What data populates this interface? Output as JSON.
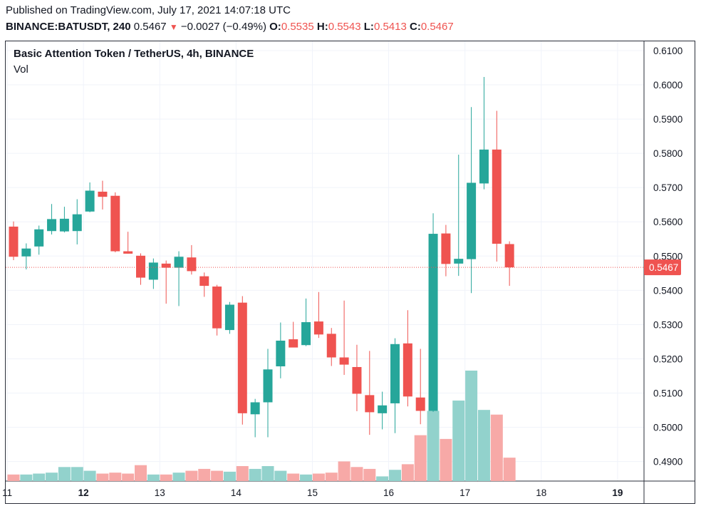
{
  "header": {
    "published": "Published on TradingView.com, July 17, 2021 14:07:18 UTC",
    "symbol": "BINANCE:BATUSDT, 240",
    "last": "0.5467",
    "change": "−0.0027 (−0.49%)",
    "open_label": "O:",
    "open": "0.5535",
    "high_label": "H:",
    "high": "0.5543",
    "low_label": "L:",
    "low": "0.5413",
    "close_label": "C:",
    "close": "0.5467"
  },
  "chart_title": "Basic Attention Token / TetherUS, 4h, BINANCE",
  "volume_label": "Vol",
  "colors": {
    "up": "#26a69a",
    "down": "#ef5350",
    "vol_up": "#92d2cc",
    "vol_down": "#f7a9a7",
    "grid": "#f0f3fa",
    "axis": "#131722"
  },
  "chart_data": {
    "type": "candlestick",
    "title": "Basic Attention Token / TetherUS, 4h, BINANCE",
    "ylim": [
      0.4843,
      0.6127
    ],
    "y_ticks": [
      "0.6100",
      "0.6000",
      "0.5900",
      "0.5800",
      "0.5700",
      "0.5600",
      "0.5500",
      "0.5400",
      "0.5300",
      "0.5200",
      "0.5100",
      "0.5000",
      "0.4900"
    ],
    "x_ticks": [
      {
        "label": "11",
        "bold": false,
        "idx": -0.5
      },
      {
        "label": "12",
        "bold": true,
        "idx": 5.5
      },
      {
        "label": "13",
        "bold": false,
        "idx": 11.5
      },
      {
        "label": "14",
        "bold": false,
        "idx": 17.5
      },
      {
        "label": "15",
        "bold": false,
        "idx": 23.5
      },
      {
        "label": "16",
        "bold": false,
        "idx": 29.5
      },
      {
        "label": "17",
        "bold": false,
        "idx": 35.5
      },
      {
        "label": "18",
        "bold": false,
        "idx": 41.5
      },
      {
        "label": "19",
        "bold": true,
        "idx": 47.5
      }
    ],
    "last_price": 0.5467,
    "last_price_label": "0.5467",
    "candles": [
      {
        "o": 0.5586,
        "h": 0.5601,
        "l": 0.5488,
        "c": 0.5498,
        "v": 7
      },
      {
        "o": 0.5499,
        "h": 0.5537,
        "l": 0.5461,
        "c": 0.5522,
        "v": 7
      },
      {
        "o": 0.5528,
        "h": 0.5589,
        "l": 0.5504,
        "c": 0.5578,
        "v": 8
      },
      {
        "o": 0.5573,
        "h": 0.5652,
        "l": 0.5563,
        "c": 0.5608,
        "v": 9
      },
      {
        "o": 0.5572,
        "h": 0.5644,
        "l": 0.5569,
        "c": 0.5609,
        "v": 15
      },
      {
        "o": 0.5573,
        "h": 0.5666,
        "l": 0.5534,
        "c": 0.5622,
        "v": 15
      },
      {
        "o": 0.563,
        "h": 0.5715,
        "l": 0.5628,
        "c": 0.5691,
        "v": 11
      },
      {
        "o": 0.5688,
        "h": 0.572,
        "l": 0.5636,
        "c": 0.5673,
        "v": 8
      },
      {
        "o": 0.5676,
        "h": 0.5686,
        "l": 0.5511,
        "c": 0.5514,
        "v": 9
      },
      {
        "o": 0.5514,
        "h": 0.5571,
        "l": 0.5507,
        "c": 0.5507,
        "v": 8
      },
      {
        "o": 0.5501,
        "h": 0.5508,
        "l": 0.5416,
        "c": 0.5437,
        "v": 17
      },
      {
        "o": 0.5431,
        "h": 0.5493,
        "l": 0.5404,
        "c": 0.5481,
        "v": 7
      },
      {
        "o": 0.5478,
        "h": 0.5487,
        "l": 0.5361,
        "c": 0.5466,
        "v": 7
      },
      {
        "o": 0.5466,
        "h": 0.5514,
        "l": 0.5354,
        "c": 0.5498,
        "v": 9
      },
      {
        "o": 0.5496,
        "h": 0.5532,
        "l": 0.5446,
        "c": 0.5456,
        "v": 11
      },
      {
        "o": 0.5441,
        "h": 0.5452,
        "l": 0.5381,
        "c": 0.5413,
        "v": 13
      },
      {
        "o": 0.5411,
        "h": 0.5416,
        "l": 0.5268,
        "c": 0.5289,
        "v": 11
      },
      {
        "o": 0.5284,
        "h": 0.5366,
        "l": 0.5273,
        "c": 0.5358,
        "v": 10
      },
      {
        "o": 0.5364,
        "h": 0.5383,
        "l": 0.5008,
        "c": 0.5041,
        "v": 16
      },
      {
        "o": 0.5038,
        "h": 0.5083,
        "l": 0.4971,
        "c": 0.5073,
        "v": 13
      },
      {
        "o": 0.5073,
        "h": 0.5229,
        "l": 0.4971,
        "c": 0.5169,
        "v": 16
      },
      {
        "o": 0.5178,
        "h": 0.5306,
        "l": 0.5143,
        "c": 0.5253,
        "v": 11
      },
      {
        "o": 0.5257,
        "h": 0.5308,
        "l": 0.5236,
        "c": 0.5233,
        "v": 8
      },
      {
        "o": 0.524,
        "h": 0.5376,
        "l": 0.5237,
        "c": 0.5307,
        "v": 7
      },
      {
        "o": 0.5309,
        "h": 0.5395,
        "l": 0.5261,
        "c": 0.5271,
        "v": 8
      },
      {
        "o": 0.5273,
        "h": 0.529,
        "l": 0.5179,
        "c": 0.5204,
        "v": 9
      },
      {
        "o": 0.5204,
        "h": 0.537,
        "l": 0.5153,
        "c": 0.5183,
        "v": 21
      },
      {
        "o": 0.5176,
        "h": 0.5241,
        "l": 0.5047,
        "c": 0.5098,
        "v": 15
      },
      {
        "o": 0.5094,
        "h": 0.5223,
        "l": 0.4978,
        "c": 0.5044,
        "v": 13
      },
      {
        "o": 0.5041,
        "h": 0.5104,
        "l": 0.4994,
        "c": 0.5064,
        "v": 5
      },
      {
        "o": 0.507,
        "h": 0.526,
        "l": 0.4983,
        "c": 0.5243,
        "v": 12
      },
      {
        "o": 0.5245,
        "h": 0.5342,
        "l": 0.5061,
        "c": 0.509,
        "v": 18
      },
      {
        "o": 0.5087,
        "h": 0.5229,
        "l": 0.5009,
        "c": 0.5048,
        "v": 49
      },
      {
        "o": 0.5048,
        "h": 0.5625,
        "l": 0.5045,
        "c": 0.5565,
        "v": 75
      },
      {
        "o": 0.5566,
        "h": 0.5591,
        "l": 0.5441,
        "c": 0.5477,
        "v": 45
      },
      {
        "o": 0.5478,
        "h": 0.5796,
        "l": 0.5442,
        "c": 0.5492,
        "v": 86
      },
      {
        "o": 0.5491,
        "h": 0.5935,
        "l": 0.5392,
        "c": 0.5714,
        "v": 118
      },
      {
        "o": 0.5712,
        "h": 0.6023,
        "l": 0.5695,
        "c": 0.5811,
        "v": 76
      },
      {
        "o": 0.5811,
        "h": 0.5924,
        "l": 0.5484,
        "c": 0.5536,
        "v": 71
      },
      {
        "o": 0.5535,
        "h": 0.5543,
        "l": 0.5413,
        "c": 0.5467,
        "v": 25
      }
    ]
  }
}
